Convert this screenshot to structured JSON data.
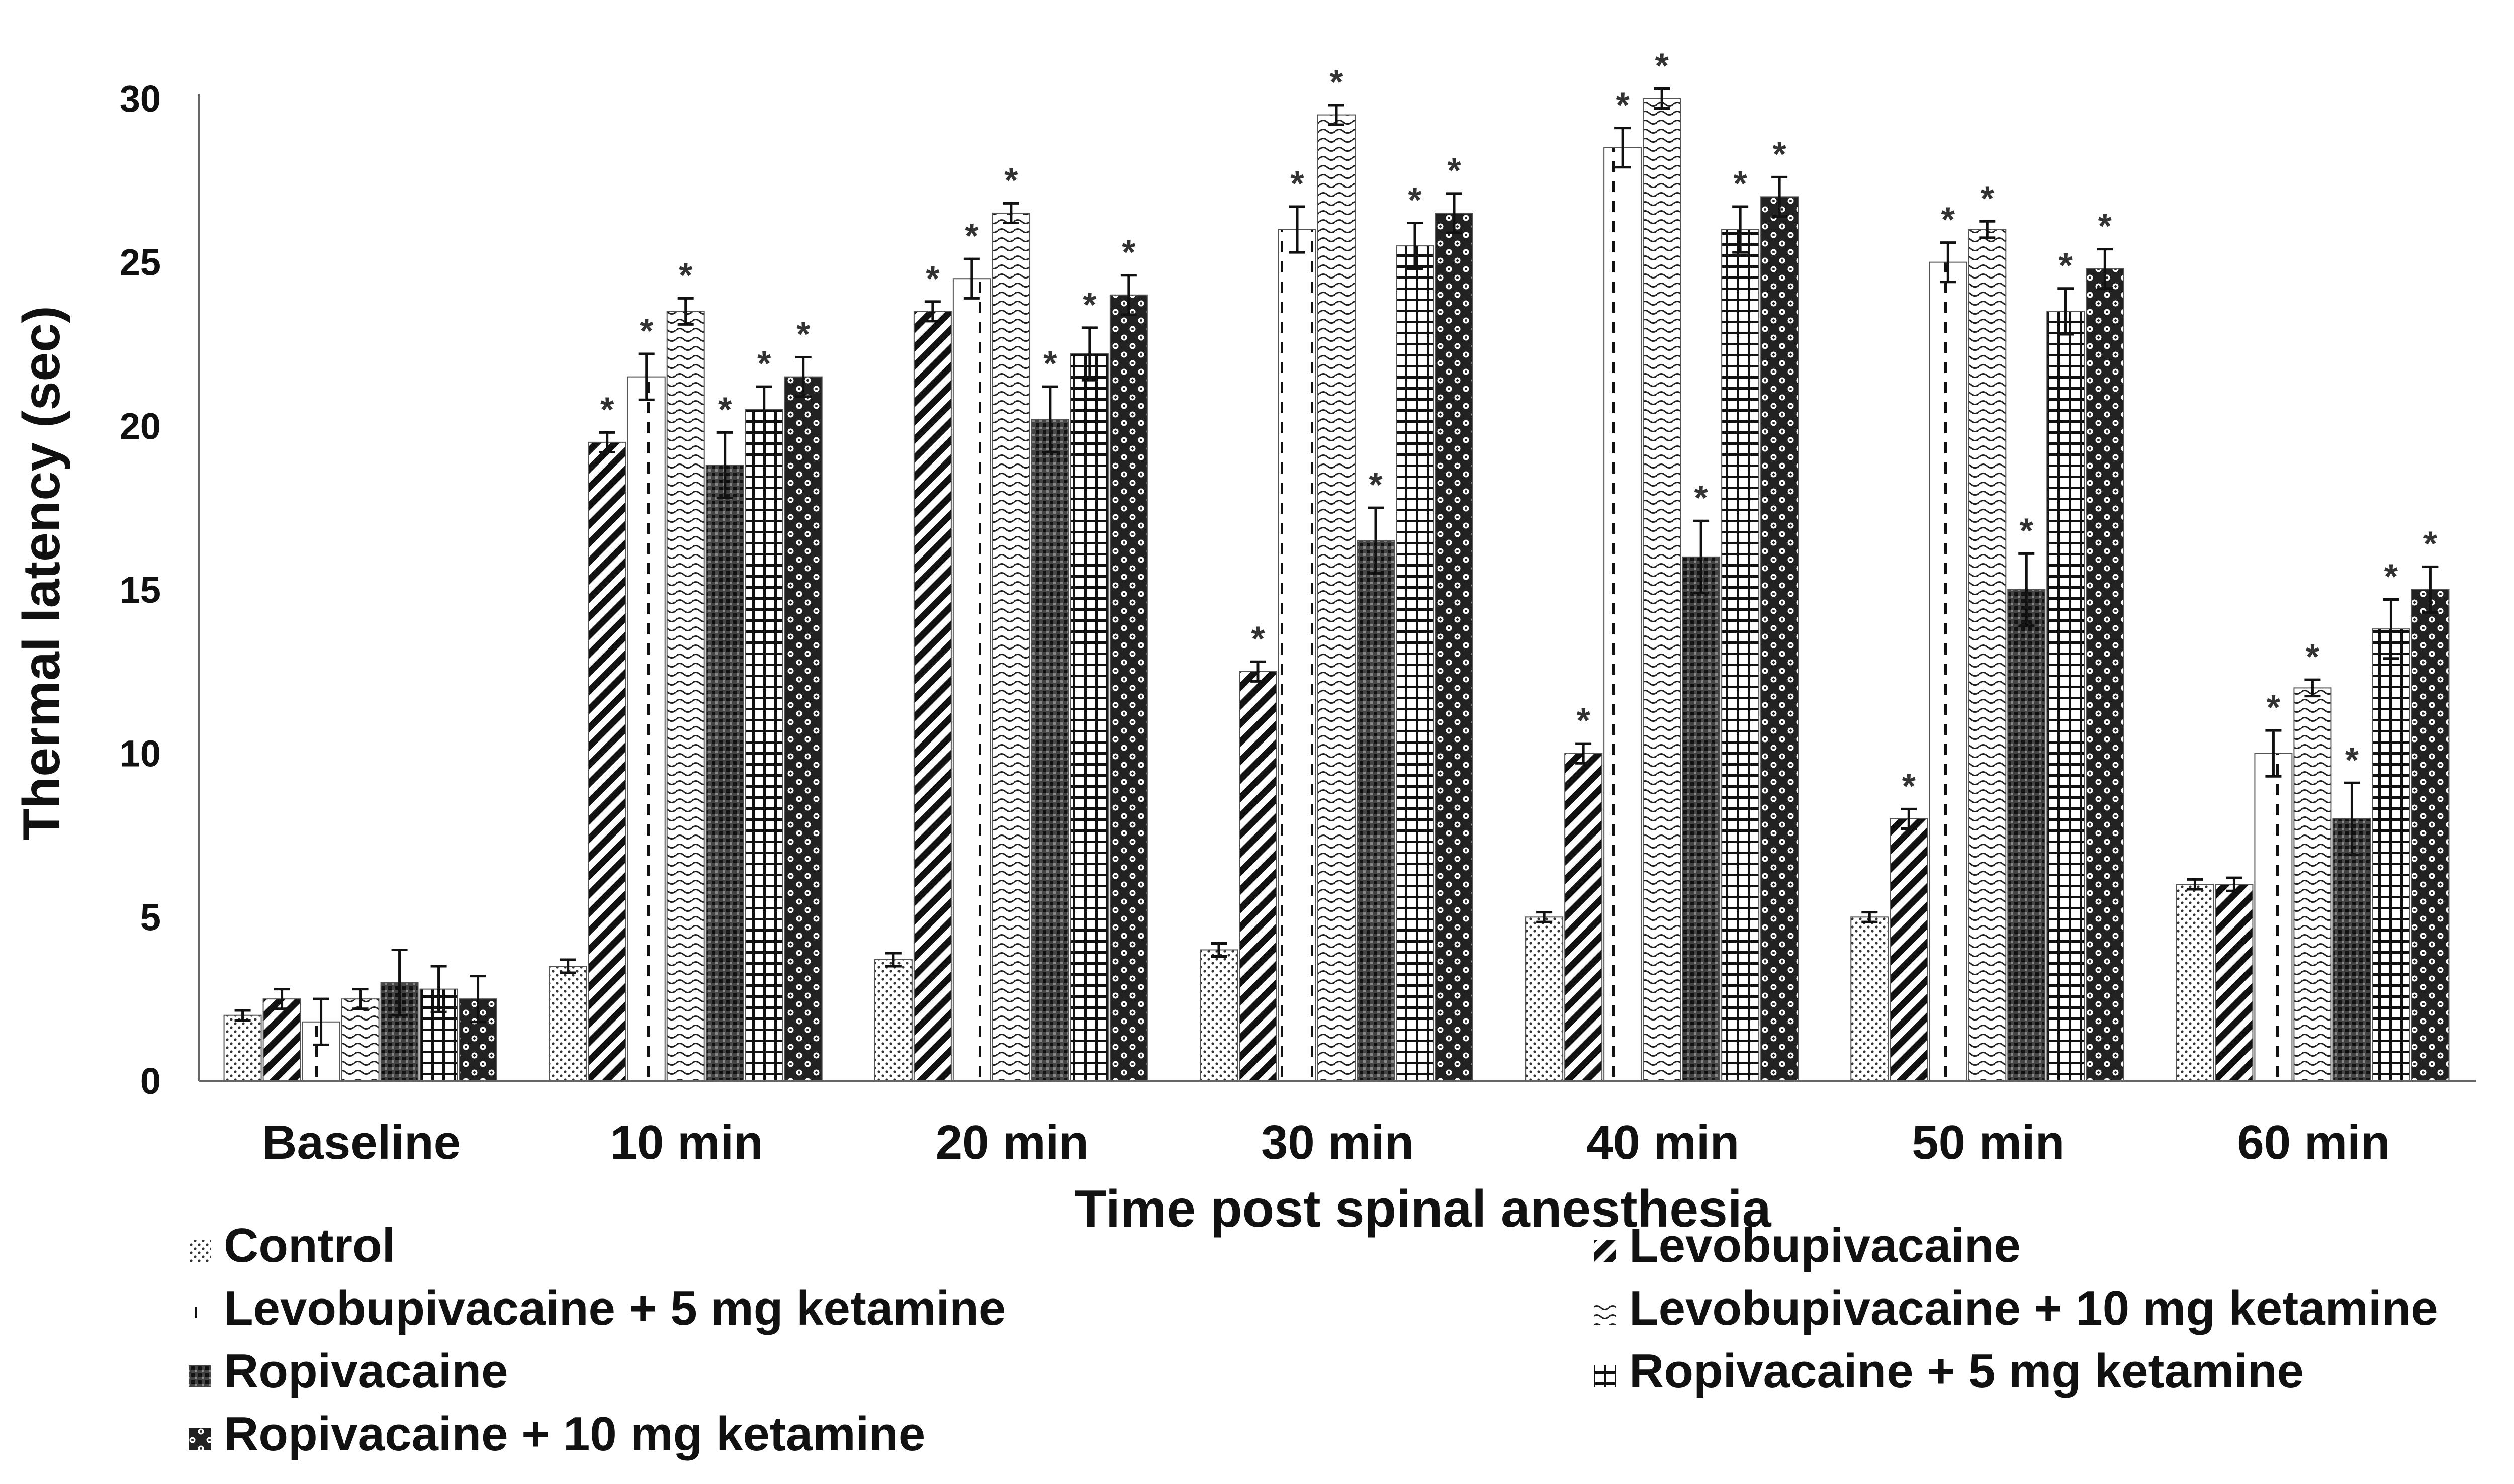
{
  "chart_data": {
    "type": "bar",
    "title": "",
    "xlabel": "Time post spinal anesthesia",
    "ylabel": "Thermal latency   (sec)",
    "ylim": [
      0,
      30
    ],
    "yticks": [
      0,
      5,
      10,
      15,
      20,
      25,
      30
    ],
    "grid": false,
    "legend_position": "bottom",
    "significance_marker": "*",
    "categories": [
      "Baseline",
      "10 min",
      "20 min",
      "30 min",
      "40 min",
      "50 min",
      "60 min"
    ],
    "series": [
      {
        "name": "Control",
        "pattern": "dots",
        "values": [
          2.0,
          3.5,
          3.7,
          4.0,
          5.0,
          5.0,
          6.0
        ],
        "errors": [
          0.15,
          0.2,
          0.2,
          0.2,
          0.15,
          0.15,
          0.15
        ],
        "significant": [
          false,
          false,
          false,
          false,
          false,
          false,
          false
        ]
      },
      {
        "name": "Levobupivacaine",
        "pattern": "diagonal",
        "values": [
          2.5,
          19.5,
          23.5,
          12.5,
          10.0,
          8.0,
          6.0
        ],
        "errors": [
          0.3,
          0.3,
          0.3,
          0.3,
          0.3,
          0.3,
          0.2
        ],
        "significant": [
          false,
          true,
          true,
          true,
          true,
          true,
          false
        ]
      },
      {
        "name": "Levobupivacaine + 5 mg ketamine",
        "pattern": "dashed-vertical",
        "values": [
          1.8,
          21.5,
          24.5,
          26.0,
          28.5,
          25.0,
          10.0
        ],
        "errors": [
          0.7,
          0.7,
          0.6,
          0.7,
          0.6,
          0.6,
          0.7
        ],
        "significant": [
          false,
          true,
          true,
          true,
          true,
          true,
          true
        ]
      },
      {
        "name": "Levobupivacaine + 10 mg ketamine",
        "pattern": "waves",
        "values": [
          2.5,
          23.5,
          26.5,
          29.5,
          30.0,
          26.0,
          12.0
        ],
        "errors": [
          0.3,
          0.4,
          0.3,
          0.3,
          0.3,
          0.25,
          0.25
        ],
        "significant": [
          false,
          true,
          true,
          true,
          true,
          true,
          true
        ]
      },
      {
        "name": "Ropivacaine",
        "pattern": "dense-grid",
        "values": [
          3.0,
          18.8,
          20.2,
          16.5,
          16.0,
          15.0,
          8.0
        ],
        "errors": [
          1.0,
          1.0,
          1.0,
          1.0,
          1.1,
          1.1,
          1.1
        ],
        "significant": [
          false,
          true,
          true,
          true,
          true,
          true,
          true
        ]
      },
      {
        "name": "Ropivacaine + 5 mg ketamine",
        "pattern": "grid",
        "values": [
          2.8,
          20.5,
          22.2,
          25.5,
          26.0,
          23.5,
          13.8
        ],
        "errors": [
          0.7,
          0.7,
          0.8,
          0.7,
          0.7,
          0.7,
          0.9
        ],
        "significant": [
          false,
          true,
          true,
          true,
          true,
          true,
          true
        ]
      },
      {
        "name": "Ropivacaine + 10 mg ketamine",
        "pattern": "circles",
        "values": [
          2.5,
          21.5,
          24.0,
          26.5,
          27.0,
          24.8,
          15.0
        ],
        "errors": [
          0.7,
          0.6,
          0.6,
          0.6,
          0.6,
          0.6,
          0.7
        ],
        "significant": [
          false,
          true,
          true,
          true,
          true,
          true,
          true
        ]
      }
    ]
  }
}
